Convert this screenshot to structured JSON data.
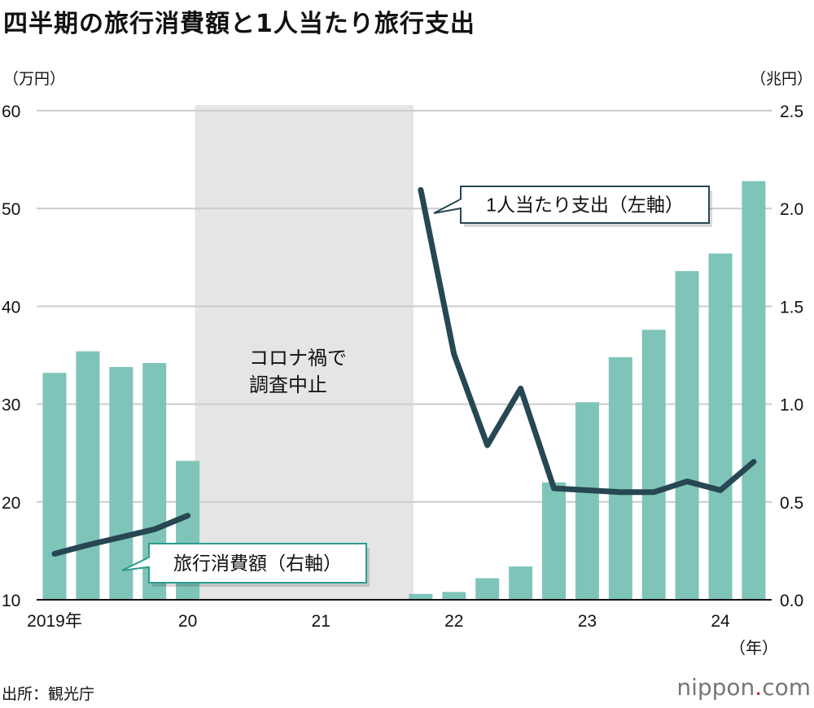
{
  "title": "四半期の旅行消費額と1人当たり旅行支出",
  "left_unit": "（万円）",
  "right_unit": "（兆円）",
  "source": "出所：観光庁",
  "logo": {
    "main": "nippon",
    "dot": ".",
    "tld": "com"
  },
  "colors": {
    "bar": "#7fc4b8",
    "line": "#264753",
    "band": "#e5e5e5",
    "grid": "#cccccc"
  },
  "chart_data": {
    "type": "bar+line",
    "title": "四半期の旅行消費額と1人当たり旅行支出",
    "categories": [
      "2019Q1",
      "2019Q2",
      "2019Q3",
      "2019Q4",
      "2020Q1",
      "2020Q2",
      "2020Q3",
      "2020Q4",
      "2021Q1",
      "2021Q2",
      "2021Q3",
      "2021Q4",
      "2022Q1",
      "2022Q2",
      "2022Q3",
      "2022Q4",
      "2023Q1",
      "2023Q2",
      "2023Q3",
      "2023Q4",
      "2024Q1",
      "2024Q2"
    ],
    "x_tick_labels": [
      {
        "index": 0,
        "label": "2019年"
      },
      {
        "index": 4,
        "label": "20"
      },
      {
        "index": 8,
        "label": "21"
      },
      {
        "index": 12,
        "label": "22"
      },
      {
        "index": 16,
        "label": "23"
      },
      {
        "index": 20,
        "label": "24"
      }
    ],
    "x_unit_label": "（年）",
    "series": [
      {
        "name": "旅行消費額（右軸）",
        "type": "bar",
        "axis": "right",
        "values": [
          1.16,
          1.27,
          1.19,
          1.21,
          0.71,
          null,
          null,
          null,
          null,
          null,
          null,
          0.03,
          0.04,
          0.11,
          0.17,
          0.6,
          1.01,
          1.24,
          1.38,
          1.68,
          1.77,
          2.14
        ]
      },
      {
        "name": "1人当たり支出（左軸）",
        "type": "line",
        "axis": "left",
        "values": [
          14.7,
          15.6,
          16.4,
          17.2,
          18.6,
          null,
          null,
          null,
          null,
          null,
          null,
          51.9,
          35.1,
          25.8,
          31.6,
          21.4,
          21.2,
          21.0,
          21.0,
          22.1,
          21.2,
          24.1
        ]
      }
    ],
    "left_axis": {
      "label": "万円",
      "ylim": [
        10,
        60
      ],
      "ticks": [
        10,
        20,
        30,
        40,
        50,
        60
      ]
    },
    "right_axis": {
      "label": "兆円",
      "ylim": [
        0,
        2.5
      ],
      "ticks": [
        "0.0",
        "0.5",
        "1.0",
        "1.5",
        "2.0",
        "2.5"
      ]
    },
    "annotation": {
      "text_line1": "コロナ禍で",
      "text_line2": "調査中止",
      "from_index": 5,
      "to_index": 10
    },
    "grid": true,
    "legend": "callouts"
  }
}
